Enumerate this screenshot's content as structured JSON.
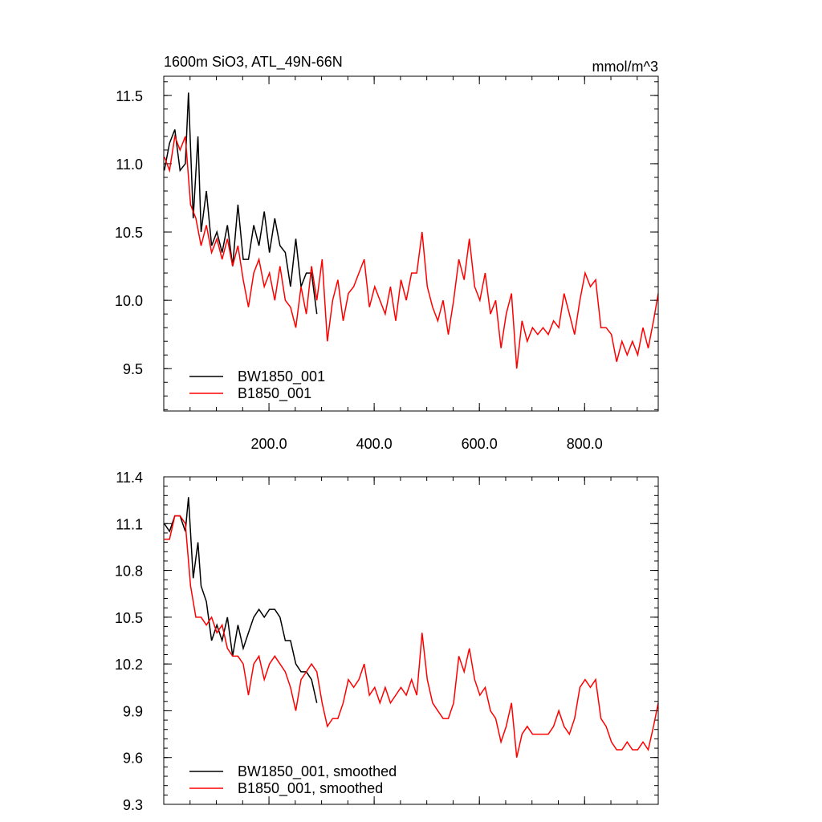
{
  "chart_data": [
    {
      "type": "line",
      "title": "1600m SiO3, ATL_49N-66N",
      "units": "mmol/m^3",
      "xlim": [
        0,
        940
      ],
      "ylim": [
        9.19,
        11.64
      ],
      "xticks": [
        {
          "value": 200,
          "label": "200.0"
        },
        {
          "value": 400,
          "label": "400.0"
        },
        {
          "value": 600,
          "label": "600.0"
        },
        {
          "value": 800,
          "label": "800.0"
        }
      ],
      "yticks": [
        9.5,
        {
          "value": 10,
          "label": "10.0"
        },
        10.5,
        {
          "value": 11,
          "label": "11.0"
        },
        11.5
      ],
      "series": [
        {
          "name": "BW1850_001",
          "color": "#000000",
          "x": [
            1,
            11,
            21,
            31,
            41,
            47,
            56,
            65,
            71,
            81,
            91,
            101,
            111,
            121,
            131,
            141,
            151,
            161,
            171,
            181,
            191,
            201,
            211,
            221,
            231,
            241,
            251,
            261,
            271,
            281,
            291
          ],
          "values": [
            10.95,
            11.15,
            11.25,
            10.95,
            11.0,
            11.52,
            10.6,
            11.2,
            10.5,
            10.8,
            10.4,
            10.5,
            10.35,
            10.55,
            10.25,
            10.7,
            10.3,
            10.3,
            10.55,
            10.4,
            10.65,
            10.35,
            10.6,
            10.4,
            10.35,
            10.1,
            10.45,
            10.1,
            10.2,
            10.2,
            9.9
          ]
        },
        {
          "name": "B1850_001",
          "color": "#ff0000",
          "x": [
            1,
            11,
            21,
            31,
            41,
            51,
            61,
            71,
            81,
            91,
            101,
            111,
            121,
            131,
            141,
            151,
            161,
            171,
            181,
            191,
            201,
            211,
            221,
            231,
            241,
            251,
            261,
            271,
            281,
            291,
            301,
            311,
            321,
            331,
            341,
            351,
            361,
            371,
            381,
            391,
            401,
            411,
            421,
            431,
            441,
            451,
            461,
            471,
            481,
            491,
            501,
            511,
            521,
            531,
            541,
            551,
            561,
            571,
            581,
            591,
            601,
            611,
            621,
            631,
            641,
            651,
            661,
            671,
            681,
            691,
            701,
            711,
            721,
            731,
            741,
            751,
            761,
            771,
            781,
            791,
            801,
            811,
            821,
            831,
            841,
            851,
            861,
            871,
            881,
            891,
            901,
            911,
            921,
            931,
            940
          ],
          "values": [
            11.05,
            10.95,
            11.2,
            11.1,
            11.2,
            10.7,
            10.6,
            10.4,
            10.55,
            10.35,
            10.45,
            10.3,
            10.45,
            10.25,
            10.4,
            10.15,
            9.95,
            10.2,
            10.3,
            10.1,
            10.2,
            10.0,
            10.25,
            10.0,
            9.95,
            9.8,
            10.1,
            9.9,
            10.25,
            10.0,
            10.3,
            9.7,
            10.0,
            10.15,
            9.85,
            10.05,
            10.1,
            10.2,
            10.3,
            9.95,
            10.1,
            10.0,
            9.9,
            10.1,
            9.85,
            10.15,
            10.0,
            10.2,
            10.2,
            10.5,
            10.1,
            9.95,
            9.85,
            10.0,
            9.75,
            10.0,
            10.3,
            10.15,
            10.45,
            10.1,
            10.0,
            10.2,
            9.9,
            10.0,
            9.65,
            9.9,
            10.05,
            9.5,
            9.85,
            9.7,
            9.8,
            9.75,
            9.8,
            9.75,
            9.85,
            9.8,
            10.05,
            9.9,
            9.75,
            10.0,
            10.2,
            10.1,
            10.15,
            9.8,
            9.8,
            9.75,
            9.55,
            9.7,
            9.6,
            9.7,
            9.6,
            9.8,
            9.65,
            9.85,
            10.05
          ]
        }
      ]
    },
    {
      "type": "line",
      "xlim": [
        0,
        940
      ],
      "ylim": [
        9.3,
        11.4
      ],
      "xticks": [
        200,
        400,
        600,
        800
      ],
      "yticks": [
        9.3,
        9.6,
        9.9,
        10.2,
        10.5,
        10.8,
        11.1,
        11.4
      ],
      "series": [
        {
          "name": "BW1850_001, smoothed",
          "color": "#000000",
          "x": [
            1,
            11,
            21,
            31,
            41,
            47,
            56,
            65,
            71,
            81,
            91,
            101,
            111,
            121,
            131,
            141,
            151,
            161,
            171,
            181,
            191,
            201,
            211,
            221,
            231,
            241,
            251,
            261,
            271,
            281,
            291
          ],
          "values": [
            11.1,
            11.05,
            11.15,
            11.15,
            11.05,
            11.27,
            10.75,
            10.98,
            10.7,
            10.6,
            10.35,
            10.45,
            10.35,
            10.5,
            10.25,
            10.45,
            10.3,
            10.4,
            10.5,
            10.55,
            10.5,
            10.55,
            10.55,
            10.5,
            10.35,
            10.35,
            10.2,
            10.15,
            10.15,
            10.1,
            9.95
          ]
        },
        {
          "name": "B1850_001, smoothed",
          "color": "#ff0000",
          "x": [
            1,
            11,
            21,
            31,
            41,
            51,
            61,
            71,
            81,
            91,
            101,
            111,
            121,
            131,
            141,
            151,
            161,
            171,
            181,
            191,
            201,
            211,
            221,
            231,
            241,
            251,
            261,
            271,
            281,
            291,
            301,
            311,
            321,
            331,
            341,
            351,
            361,
            371,
            381,
            391,
            401,
            411,
            421,
            431,
            441,
            451,
            461,
            471,
            481,
            491,
            501,
            511,
            521,
            531,
            541,
            551,
            561,
            571,
            581,
            591,
            601,
            611,
            621,
            631,
            641,
            651,
            661,
            671,
            681,
            691,
            701,
            711,
            721,
            731,
            741,
            751,
            761,
            771,
            781,
            791,
            801,
            811,
            821,
            831,
            841,
            851,
            861,
            871,
            881,
            891,
            901,
            911,
            921,
            931,
            940
          ],
          "values": [
            11.0,
            11.0,
            11.15,
            11.15,
            11.1,
            10.7,
            10.5,
            10.5,
            10.45,
            10.5,
            10.4,
            10.45,
            10.3,
            10.25,
            10.25,
            10.2,
            10.0,
            10.2,
            10.25,
            10.1,
            10.2,
            10.25,
            10.2,
            10.15,
            10.05,
            9.9,
            10.1,
            10.15,
            10.2,
            10.15,
            9.95,
            9.8,
            9.85,
            9.85,
            9.95,
            10.1,
            10.05,
            10.1,
            10.2,
            10.0,
            10.05,
            9.95,
            10.05,
            9.95,
            10.0,
            10.05,
            10.0,
            10.1,
            10.0,
            10.4,
            10.1,
            9.95,
            9.9,
            9.85,
            9.85,
            9.95,
            10.25,
            10.15,
            10.3,
            10.1,
            10.0,
            10.05,
            9.9,
            9.85,
            9.7,
            9.8,
            9.95,
            9.6,
            9.75,
            9.8,
            9.75,
            9.75,
            9.75,
            9.75,
            9.8,
            9.9,
            9.8,
            9.75,
            9.85,
            10.05,
            10.1,
            10.05,
            10.1,
            9.85,
            9.8,
            9.7,
            9.65,
            9.65,
            9.7,
            9.65,
            9.65,
            9.7,
            9.65,
            9.8,
            9.95
          ]
        }
      ]
    }
  ]
}
